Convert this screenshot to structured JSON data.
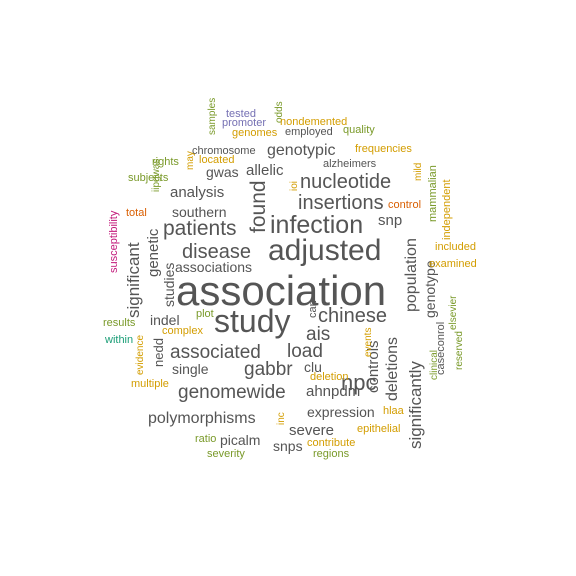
{
  "palette": {
    "dark": "#555555",
    "gold": "#d39d00",
    "olive": "#7a9a2a",
    "teal": "#1b9e77",
    "magenta": "#c2187a",
    "slate": "#7570b3",
    "orange": "#d95f02"
  },
  "words": [
    {
      "text": "association",
      "color": "#555555"
    },
    {
      "text": "study",
      "color": "#555555"
    },
    {
      "text": "adjusted",
      "color": "#555555"
    },
    {
      "text": "infection",
      "color": "#555555"
    },
    {
      "text": "patients",
      "color": "#555555"
    },
    {
      "text": "disease",
      "color": "#555555"
    },
    {
      "text": "nucleotide",
      "color": "#555555"
    },
    {
      "text": "insertions",
      "color": "#555555"
    },
    {
      "text": "chinese",
      "color": "#555555"
    },
    {
      "text": "ais",
      "color": "#555555"
    },
    {
      "text": "npc",
      "color": "#555555"
    },
    {
      "text": "associated",
      "color": "#555555"
    },
    {
      "text": "load",
      "color": "#555555"
    },
    {
      "text": "gabbr",
      "color": "#555555"
    },
    {
      "text": "genomewide",
      "color": "#555555"
    },
    {
      "text": "found",
      "color": "#555555"
    },
    {
      "text": "significant",
      "color": "#555555"
    },
    {
      "text": "significantly",
      "color": "#555555"
    },
    {
      "text": "population",
      "color": "#555555"
    },
    {
      "text": "deletions",
      "color": "#555555"
    },
    {
      "text": "controls",
      "color": "#555555"
    },
    {
      "text": "polymorphisms",
      "color": "#555555"
    },
    {
      "text": "severe",
      "color": "#555555"
    },
    {
      "text": "analysis",
      "color": "#555555"
    },
    {
      "text": "southern",
      "color": "#555555"
    },
    {
      "text": "genotypic",
      "color": "#555555"
    },
    {
      "text": "allelic",
      "color": "#555555"
    },
    {
      "text": "gwas",
      "color": "#555555"
    },
    {
      "text": "snp",
      "color": "#555555"
    },
    {
      "text": "genetic",
      "color": "#555555"
    },
    {
      "text": "studies",
      "color": "#555555"
    },
    {
      "text": "indel",
      "color": "#555555"
    },
    {
      "text": "single",
      "color": "#555555"
    },
    {
      "text": "ahnpdm",
      "color": "#555555"
    },
    {
      "text": "clu",
      "color": "#555555"
    },
    {
      "text": "expression",
      "color": "#555555"
    },
    {
      "text": "picalm",
      "color": "#555555"
    },
    {
      "text": "snps",
      "color": "#555555"
    },
    {
      "text": "associations",
      "color": "#555555"
    },
    {
      "text": "genotype",
      "color": "#555555"
    },
    {
      "text": "nedd",
      "color": "#555555"
    },
    {
      "text": "chromosome",
      "color": "#555555"
    },
    {
      "text": "alzheimers",
      "color": "#555555"
    },
    {
      "text": "employed",
      "color": "#555555"
    },
    {
      "text": "caseconrol",
      "color": "#555555"
    },
    {
      "text": "can",
      "color": "#555555"
    },
    {
      "text": "control",
      "color": "#d95f02"
    },
    {
      "text": "total",
      "color": "#d95f02"
    },
    {
      "text": "susceptibility",
      "color": "#c2187a"
    },
    {
      "text": "within",
      "color": "#1b9e77"
    },
    {
      "text": "tested",
      "color": "#7570b3"
    },
    {
      "text": "promoter",
      "color": "#7570b3"
    },
    {
      "text": "samples",
      "color": "#7a9a2a"
    },
    {
      "text": "odds",
      "color": "#7a9a2a"
    },
    {
      "text": "nondemented",
      "color": "#d39d00"
    },
    {
      "text": "genomes",
      "color": "#d39d00"
    },
    {
      "text": "quality",
      "color": "#7a9a2a"
    },
    {
      "text": "rights",
      "color": "#7a9a2a"
    },
    {
      "text": "may",
      "color": "#d39d00"
    },
    {
      "text": "located",
      "color": "#d39d00"
    },
    {
      "text": "iipgwas",
      "color": "#7a9a2a"
    },
    {
      "text": "subjects",
      "color": "#7a9a2a"
    },
    {
      "text": "frequencies",
      "color": "#d39d00"
    },
    {
      "text": "mild",
      "color": "#d39d00"
    },
    {
      "text": "mammalian",
      "color": "#7a9a2a"
    },
    {
      "text": "independent",
      "color": "#d39d00"
    },
    {
      "text": "included",
      "color": "#d39d00"
    },
    {
      "text": "examined",
      "color": "#d39d00"
    },
    {
      "text": "ioi",
      "color": "#d39d00"
    },
    {
      "text": "results",
      "color": "#7a9a2a"
    },
    {
      "text": "plot",
      "color": "#7a9a2a"
    },
    {
      "text": "complex",
      "color": "#d39d00"
    },
    {
      "text": "evidence",
      "color": "#d39d00"
    },
    {
      "text": "multiple",
      "color": "#d39d00"
    },
    {
      "text": "events",
      "color": "#d39d00"
    },
    {
      "text": "clinical",
      "color": "#7a9a2a"
    },
    {
      "text": "elsevier",
      "color": "#7a9a2a"
    },
    {
      "text": "reserved",
      "color": "#7a9a2a"
    },
    {
      "text": "deletion",
      "color": "#d39d00"
    },
    {
      "text": "inc",
      "color": "#d39d00"
    },
    {
      "text": "hlaa",
      "color": "#d39d00"
    },
    {
      "text": "epithelial",
      "color": "#d39d00"
    },
    {
      "text": "contribute",
      "color": "#d39d00"
    },
    {
      "text": "regions",
      "color": "#7a9a2a"
    },
    {
      "text": "ratio",
      "color": "#7a9a2a"
    },
    {
      "text": "severity",
      "color": "#7a9a2a"
    }
  ]
}
